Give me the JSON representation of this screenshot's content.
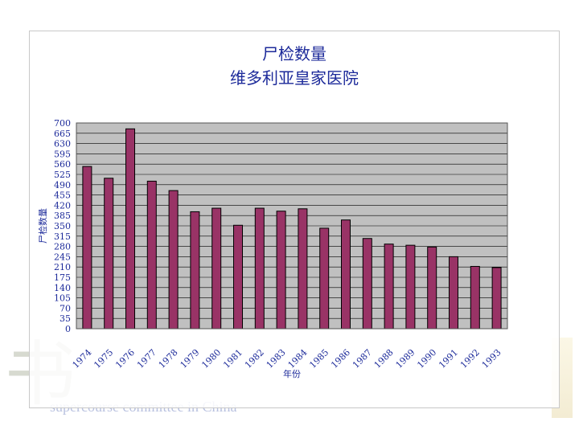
{
  "chart_data": {
    "type": "bar",
    "title": "尸检数量",
    "subtitle": "维多利亚皇家医院",
    "xlabel": "年份",
    "ylabel": "尸检数量",
    "categories": [
      "1974",
      "1975",
      "1976",
      "1977",
      "1978",
      "1979",
      "1980",
      "1981",
      "1982",
      "1983",
      "1984",
      "1985",
      "1986",
      "1987",
      "1988",
      "1989",
      "1990",
      "1991",
      "1992",
      "1993"
    ],
    "values": [
      552,
      512,
      680,
      502,
      470,
      398,
      410,
      352,
      410,
      400,
      408,
      342,
      370,
      307,
      288,
      284,
      278,
      245,
      212,
      208
    ],
    "yticks": [
      "0",
      "35",
      "70",
      "105",
      "140",
      "175",
      "210",
      "245",
      "280",
      "315",
      "350",
      "385",
      "420",
      "455",
      "490",
      "525",
      "560",
      "595",
      "630",
      "665",
      "700"
    ],
    "ylim": [
      0,
      700
    ],
    "grid": true,
    "legend": "none",
    "bar_color": "#993366",
    "plot_background": "#c0c0c0"
  },
  "watermark": {
    "text": "supercourse committee in China"
  }
}
